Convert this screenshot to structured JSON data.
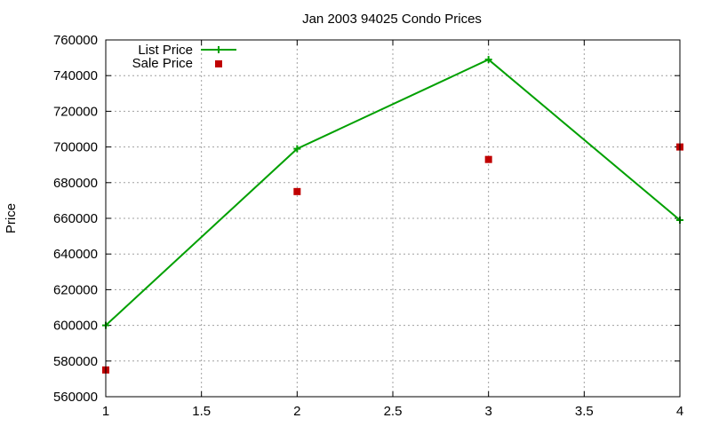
{
  "chart_data": {
    "type": "line",
    "title": "Jan 2003 94025 Condo Prices",
    "xlabel": "",
    "ylabel": "Price",
    "xlim": [
      1,
      4
    ],
    "ylim": [
      560000,
      760000
    ],
    "xticks": [
      1,
      1.5,
      2,
      2.5,
      3,
      3.5,
      4
    ],
    "yticks": [
      560000,
      580000,
      600000,
      620000,
      640000,
      660000,
      680000,
      700000,
      720000,
      740000,
      760000
    ],
    "grid": true,
    "legend_position": "top-left",
    "series": [
      {
        "name": "List Price",
        "style": "line+cross",
        "color": "#00a000",
        "x": [
          1,
          2,
          3,
          4
        ],
        "y": [
          600000,
          699000,
          749000,
          659000
        ]
      },
      {
        "name": "Sale Price",
        "style": "square-markers",
        "color": "#c00000",
        "x": [
          1,
          2,
          3,
          4
        ],
        "y": [
          575000,
          675000,
          693000,
          700000
        ]
      }
    ]
  }
}
